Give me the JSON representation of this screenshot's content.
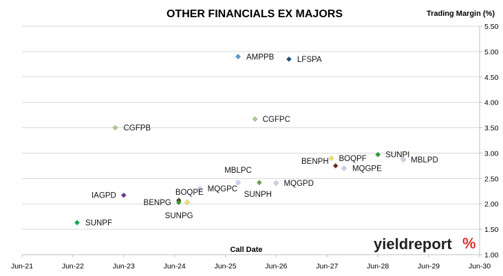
{
  "chart_data": {
    "type": "scatter",
    "title": "OTHER FINANCIALS EX MAJORS",
    "xlabel": "Call Date",
    "ylabel": "Trading Margin (%)",
    "x_ticks": [
      "Jun-21",
      "Jun-22",
      "Jun-23",
      "Jun-24",
      "Jun-25",
      "Jun-26",
      "Jun-27",
      "Jun-28",
      "Jun-29",
      "Jun-30"
    ],
    "xlim": [
      "Jun-21",
      "Jun-30"
    ],
    "y_ticks": [
      "1.00",
      "1.50",
      "2.00",
      "2.50",
      "3.00",
      "3.50",
      "4.00",
      "4.50",
      "5.00",
      "5.50"
    ],
    "ylim": [
      1.0,
      5.5
    ],
    "y_axis_side": "right",
    "grid": "horizontal",
    "points": [
      {
        "label": "AMPPB",
        "x": "Sep-25",
        "y": 4.9,
        "color": "#5b9bd5"
      },
      {
        "label": "LFSPA",
        "x": "Sep-26",
        "y": 4.85,
        "color": "#1f4e79"
      },
      {
        "label": "CGFPC",
        "x": "Jan-26",
        "y": 3.67,
        "color": "#a9d18e"
      },
      {
        "label": "CGFPB",
        "x": "Apr-23",
        "y": 3.5,
        "color": "#a9d18e"
      },
      {
        "label": "SUNPI",
        "x": "Jun-28",
        "y": 2.97,
        "color": "#2ca02c"
      },
      {
        "label": "BOQPF",
        "x": "Jul-27",
        "y": 2.9,
        "color": "#f5e663"
      },
      {
        "label": "MBLPD",
        "x": "Dec-28",
        "y": 2.87,
        "color": "#c9d7ee"
      },
      {
        "label": "BENPH",
        "x": "Aug-27",
        "y": 2.75,
        "color": "#7b2a1e"
      },
      {
        "label": "MQGPE",
        "x": "Oct-27",
        "y": 2.7,
        "color": "#c9d7ee"
      },
      {
        "label": "MBLPC",
        "x": "Sep-25",
        "y": 2.42,
        "color": "#c9d7ee"
      },
      {
        "label": "SUNPH",
        "x": "Feb-26",
        "y": 2.42,
        "color": "#6aa84f"
      },
      {
        "label": "MQGPD",
        "x": "Jun-26",
        "y": 2.41,
        "color": "#c9d7ee"
      },
      {
        "label": "MQGPC",
        "x": "Dec-24",
        "y": 2.3,
        "color": "#c9d7ee"
      },
      {
        "label": "IAGPD",
        "x": "Jun-23",
        "y": 2.17,
        "color": "#7030a0"
      },
      {
        "label": "BOQPE",
        "x": "Jul-24",
        "y": 2.07,
        "color": "#5b3a1a"
      },
      {
        "label": "BENPG",
        "x": "Jul-24",
        "y": 2.03,
        "color": "#2ca02c"
      },
      {
        "label": "SUNPG",
        "x": "Sep-24",
        "y": 2.03,
        "color": "#f5e663"
      },
      {
        "label": "SUNPF",
        "x": "Jul-22",
        "y": 1.63,
        "color": "#00b050"
      }
    ]
  },
  "branding": {
    "logo_text": "yieldreport",
    "logo_symbol": "%"
  }
}
